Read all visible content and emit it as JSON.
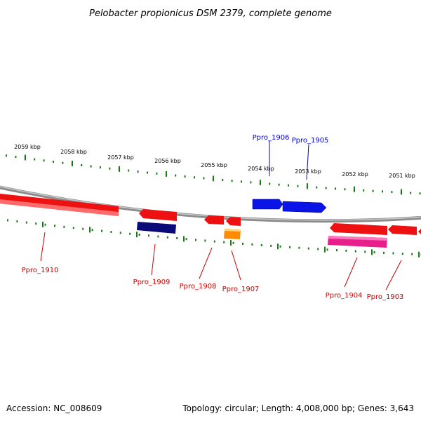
{
  "title": "Pelobacter propionicus DSM 2379, complete genome",
  "footer": {
    "accession": "Accession: NC_008609",
    "summary": "Topology: circular; Length: 4,008,000 bp; Genes: 3,643"
  },
  "colors": {
    "backbone": "#8c8c8c",
    "tick": "#1a7a1a",
    "forward_label": "#0000cc",
    "reverse_label": "#cc0000",
    "red_gene": "#ee1111",
    "blue_gene": "#0a14e6",
    "navy_gene": "#0a0a78",
    "orange_gene": "#ff8c00",
    "magenta_gene": "#e81e8c"
  },
  "scale_ticks": [
    "2059 kbp",
    "2058 kbp",
    "2057 kbp",
    "2056 kbp",
    "2055 kbp",
    "2054 kbp",
    "2053 kbp",
    "2052 kbp",
    "2051 kbp"
  ],
  "genes_labeled": [
    {
      "name": "Ppro_1906",
      "strand": "forward"
    },
    {
      "name": "Ppro_1905",
      "strand": "forward"
    },
    {
      "name": "Ppro_1910",
      "strand": "reverse"
    },
    {
      "name": "Ppro_1909",
      "strand": "reverse"
    },
    {
      "name": "Ppro_1908",
      "strand": "reverse"
    },
    {
      "name": "Ppro_1907",
      "strand": "reverse"
    },
    {
      "name": "Ppro_1904",
      "strand": "reverse"
    },
    {
      "name": "Ppro_1903",
      "strand": "reverse"
    }
  ]
}
